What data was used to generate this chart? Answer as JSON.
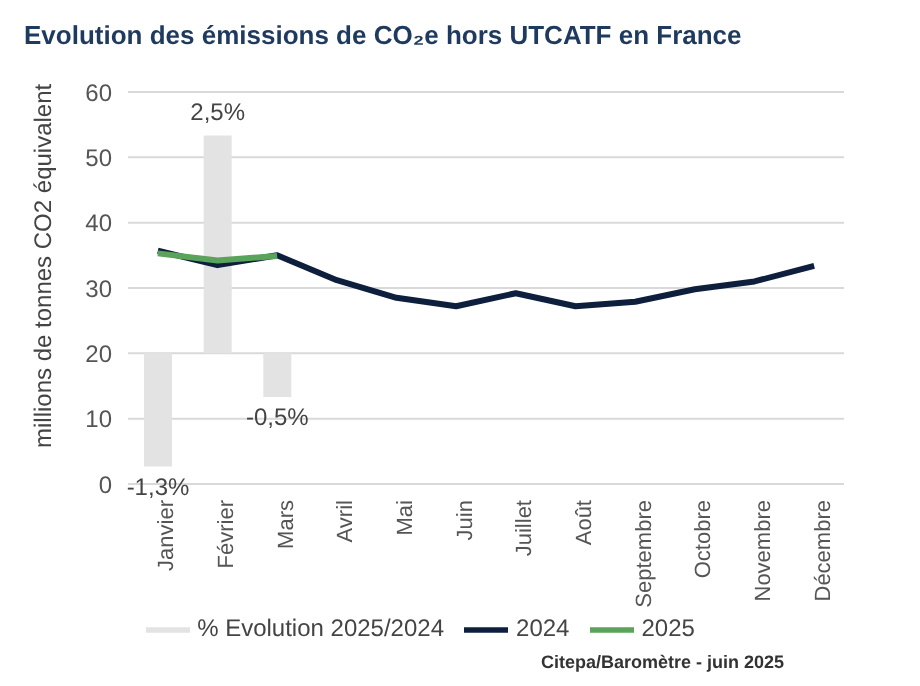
{
  "chart_data": {
    "type": "line",
    "title": "Evolution des émissions de CO₂e hors UTCATF en France",
    "ylabel": "millions de tonnes CO2 équivalent",
    "categories": [
      "Janvier",
      "Février",
      "Mars",
      "Avril",
      "Mai",
      "Juin",
      "Juillet",
      "Août",
      "Septembre",
      "Octobre",
      "Novembre",
      "Décembre"
    ],
    "series": [
      {
        "name": "% Evolution 2025/2024",
        "type": "bar",
        "axis": "y2",
        "color": "#e3e3e3",
        "values": [
          -1.3,
          2.5,
          -0.5,
          null,
          null,
          null,
          null,
          null,
          null,
          null,
          null,
          null
        ],
        "value_labels": [
          "-1,3%",
          "2,5%",
          "-0,5%",
          null,
          null,
          null,
          null,
          null,
          null,
          null,
          null,
          null
        ]
      },
      {
        "name": "2024",
        "color": "#0d1f3c",
        "values": [
          35.7,
          33.5,
          35.0,
          31.2,
          28.5,
          27.2,
          29.2,
          27.2,
          27.9,
          29.8,
          31.0,
          33.4
        ]
      },
      {
        "name": "2025",
        "color": "#5aa35a",
        "values": [
          35.3,
          34.2,
          34.9,
          null,
          null,
          null,
          null,
          null,
          null,
          null,
          null,
          null
        ]
      }
    ],
    "ylim": [
      0,
      60
    ],
    "yticks": [
      0,
      10,
      20,
      30,
      40,
      50,
      60
    ],
    "y2lim": [
      -1.5,
      3
    ],
    "grid": "y",
    "legend": "bottom",
    "marker": "none",
    "line_style": "solid",
    "annotations": [
      "Citepa/Baromètre - juin 2025"
    ]
  }
}
